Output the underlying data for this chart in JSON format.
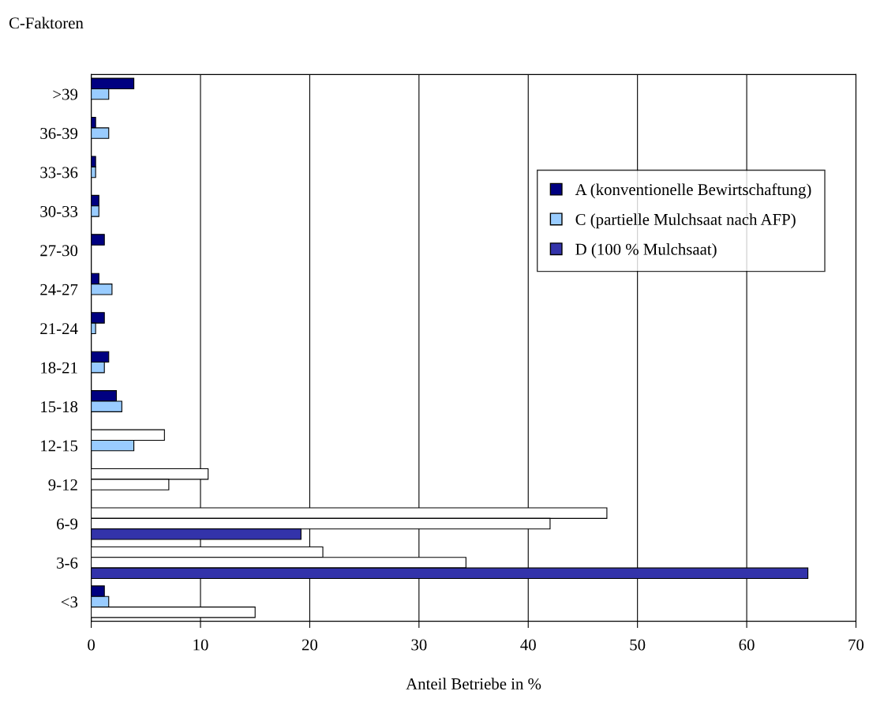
{
  "chart_data": {
    "type": "bar",
    "orientation": "horizontal",
    "ylabel": "C-Faktoren",
    "xlabel": "Anteil Betriebe in %",
    "categories": [
      ">39",
      "36-39",
      "33-36",
      "30-33",
      "27-30",
      "24-27",
      "21-24",
      "18-21",
      "15-18",
      "12-15",
      "9-12",
      "6-9",
      "3-6",
      "<3"
    ],
    "series": [
      {
        "name": "A (konventionelle Bewirtschaftung)",
        "color": "#000080",
        "colors": [
          "#000080",
          "#000080",
          "#000080",
          "#000080",
          "#000080",
          "#000080",
          "#000080",
          "#000080",
          "#000080",
          "#ffffff",
          "#ffffff",
          "#ffffff",
          "#ffffff",
          "#000080"
        ],
        "values": [
          3.9,
          0.4,
          0.4,
          0.7,
          1.2,
          0.7,
          1.2,
          1.6,
          2.3,
          6.7,
          10.7,
          47.2,
          21.2,
          1.2
        ]
      },
      {
        "name": "C (partielle Mulchsaat nach AFP)",
        "color": "#99ccff",
        "colors": [
          "#99ccff",
          "#99ccff",
          "#99ccff",
          "#99ccff",
          "#99ccff",
          "#99ccff",
          "#99ccff",
          "#99ccff",
          "#99ccff",
          "#99ccff",
          "#ffffff",
          "#ffffff",
          "#ffffff",
          "#99ccff"
        ],
        "values": [
          1.6,
          1.6,
          0.4,
          0.7,
          null,
          1.9,
          0.4,
          1.2,
          2.8,
          3.9,
          7.1,
          42.0,
          34.3,
          1.6
        ]
      },
      {
        "name": "D (100 % Mulchsaat)",
        "color": "#3333aa",
        "colors": [
          "#3333aa",
          "#3333aa",
          "#3333aa",
          "#3333aa",
          "#3333aa",
          "#3333aa",
          "#3333aa",
          "#3333aa",
          "#3333aa",
          "#3333aa",
          "#3333aa",
          "#3333aa",
          "#3333aa",
          "#ffffff"
        ],
        "values": [
          null,
          null,
          null,
          null,
          null,
          null,
          null,
          null,
          null,
          null,
          null,
          19.2,
          65.6,
          15.0
        ]
      }
    ],
    "xlim": [
      0,
      70
    ],
    "xticks": [
      0,
      10,
      20,
      30,
      40,
      50,
      60,
      70
    ],
    "grid": "x",
    "legend": "top right"
  }
}
